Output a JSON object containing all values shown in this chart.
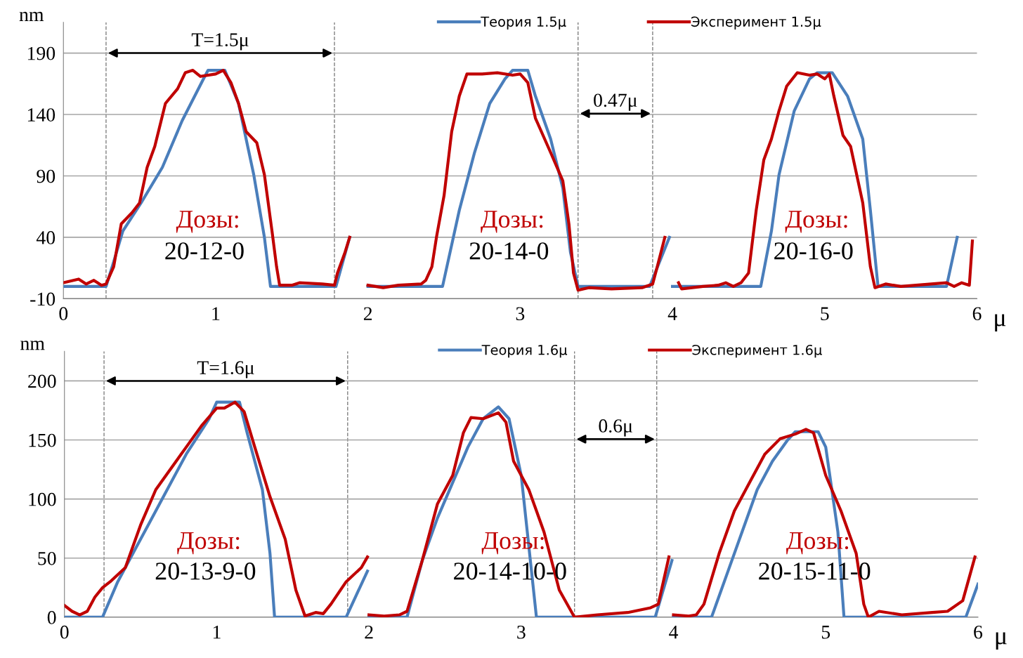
{
  "chart_data": [
    {
      "type": "line",
      "xlabel": "μ",
      "ylabel": "nm",
      "xlim": [
        0,
        6
      ],
      "ylim": [
        -10,
        215
      ],
      "xticks": [
        0,
        1,
        2,
        3,
        4,
        5,
        6
      ],
      "yticks": [
        -10,
        40,
        90,
        140,
        190
      ],
      "grid": "y",
      "legend": "top",
      "marker": "none",
      "line_style": "solid",
      "series": [
        {
          "name": "Теория 1.5μ",
          "color": "#4a7ebb",
          "x": [
            0,
            0.28,
            0.33,
            0.39,
            0.51,
            0.65,
            0.78,
            0.92,
            0.95,
            1.06,
            1.15,
            1.25,
            1.32,
            1.36,
            1.79,
            1.88,
            null,
            2.0,
            2.49,
            2.6,
            2.7,
            2.8,
            2.9,
            2.95,
            3.05,
            3.1,
            3.2,
            3.28,
            3.33,
            3.38,
            3.85,
            3.98,
            null,
            4.0,
            4.58,
            4.65,
            4.7,
            4.8,
            4.9,
            4.95,
            5.05,
            5.15,
            5.25,
            5.3,
            5.35,
            5.8,
            5.87
          ],
          "values": [
            0,
            0,
            20,
            45,
            68,
            97,
            135,
            169,
            176,
            176,
            149,
            91,
            40,
            0,
            0,
            40,
            null,
            0,
            0,
            62,
            109,
            149,
            169,
            176,
            176,
            155,
            120,
            80,
            28,
            0,
            0,
            40,
            null,
            0,
            0,
            45,
            91,
            143,
            169,
            174,
            174,
            155,
            120,
            62,
            0,
            0,
            40
          ]
        },
        {
          "name": "Эксперимент 1.5μ",
          "color": "#c00000",
          "x": [
            0,
            0.1,
            0.15,
            0.2,
            0.25,
            0.28,
            0.33,
            0.38,
            0.45,
            0.5,
            0.55,
            0.6,
            0.67,
            0.75,
            0.8,
            0.85,
            0.9,
            1.0,
            1.05,
            1.1,
            1.15,
            1.2,
            1.27,
            1.32,
            1.37,
            1.4,
            1.42,
            1.5,
            1.55,
            1.7,
            1.78,
            1.8,
            1.85,
            1.88,
            null,
            2.0,
            2.1,
            2.2,
            2.35,
            2.38,
            2.42,
            2.45,
            2.5,
            2.55,
            2.6,
            2.65,
            2.75,
            2.85,
            2.95,
            3.0,
            3.05,
            3.1,
            3.2,
            3.28,
            3.32,
            3.35,
            3.38,
            3.45,
            3.6,
            3.8,
            3.87,
            3.9,
            3.95,
            null,
            4.04,
            4.06,
            4.2,
            4.3,
            4.35,
            4.4,
            4.45,
            4.5,
            4.55,
            4.6,
            4.65,
            4.7,
            4.75,
            4.82,
            4.9,
            4.95,
            5.0,
            5.03,
            5.06,
            5.12,
            5.17,
            5.25,
            5.3,
            5.33,
            5.4,
            5.5,
            5.7,
            5.8,
            5.85,
            5.9,
            5.95,
            5.97
          ],
          "values": [
            3,
            6,
            2,
            5,
            1,
            2,
            16,
            51,
            60,
            68,
            97,
            114,
            149,
            161,
            174,
            176,
            171,
            173,
            176,
            166,
            149,
            126,
            117,
            91,
            45,
            16,
            1,
            1,
            3,
            2,
            1,
            11,
            28,
            40,
            null,
            1,
            -1,
            1,
            2,
            5,
            16,
            40,
            74,
            126,
            155,
            173,
            173,
            174,
            172,
            173,
            166,
            137,
            109,
            86,
            51,
            11,
            -3,
            -1,
            -2,
            -1,
            2,
            16,
            40,
            null,
            3,
            -2,
            0,
            1,
            3,
            0,
            3,
            11,
            62,
            103,
            120,
            143,
            163,
            174,
            172,
            173,
            169,
            173,
            155,
            123,
            114,
            68,
            16,
            -1,
            2,
            0,
            2,
            3,
            0,
            3,
            1,
            37
          ]
        }
      ],
      "ref_lines": [
        {
          "axis": "x",
          "value": 0.28,
          "color": "#808080",
          "line_style": "dashed"
        },
        {
          "axis": "x",
          "value": 1.78,
          "color": "#808080",
          "line_style": "dashed"
        },
        {
          "axis": "x",
          "value": 3.38,
          "color": "#808080",
          "line_style": "dashed"
        },
        {
          "axis": "x",
          "value": 3.87,
          "color": "#808080",
          "line_style": "dashed"
        }
      ],
      "annotations": [
        "T=1.5μ",
        "0.47μ",
        "Дозы:",
        "20-12-0",
        "Дозы:",
        "20-14-0",
        "Дозы:",
        "20-16-0"
      ]
    },
    {
      "type": "line",
      "xlabel": "μ",
      "ylabel": "nm",
      "xlim": [
        0,
        6
      ],
      "ylim": [
        0,
        225
      ],
      "xticks": [
        0,
        1,
        2,
        3,
        4,
        5,
        6
      ],
      "yticks": [
        0,
        50,
        100,
        150,
        200
      ],
      "grid": "y",
      "legend": "top",
      "marker": "none",
      "line_style": "solid",
      "series": [
        {
          "name": "Теория 1.6μ",
          "color": "#4a7ebb",
          "x": [
            0,
            0.25,
            0.35,
            0.45,
            0.55,
            0.65,
            0.8,
            0.95,
            1.0,
            1.15,
            1.2,
            1.3,
            1.35,
            1.38,
            1.85,
            1.99,
            null,
            2.0,
            2.25,
            2.35,
            2.45,
            2.55,
            2.65,
            2.75,
            2.85,
            2.92,
            3.0,
            3.05,
            3.1,
            3.88,
            3.99,
            null,
            4.0,
            4.25,
            4.35,
            4.45,
            4.55,
            4.65,
            4.75,
            4.8,
            4.95,
            5.0,
            5.08,
            5.12,
            5.92,
            6.0
          ],
          "values": [
            0,
            0,
            30,
            54,
            78,
            102,
            138,
            168,
            182,
            182,
            156,
            108,
            54,
            0,
            0,
            39,
            null,
            0,
            0,
            48,
            84,
            114,
            144,
            168,
            178,
            168,
            120,
            60,
            0,
            0,
            48,
            null,
            0,
            0,
            36,
            72,
            108,
            132,
            150,
            157,
            157,
            144,
            72,
            0,
            0,
            28
          ]
        },
        {
          "name": "Эксперимент 1.6μ",
          "color": "#c00000",
          "x": [
            0,
            0.05,
            0.1,
            0.15,
            0.2,
            0.25,
            0.3,
            0.4,
            0.5,
            0.6,
            0.7,
            0.8,
            0.9,
            1.0,
            1.05,
            1.12,
            1.18,
            1.25,
            1.35,
            1.45,
            1.52,
            1.58,
            1.65,
            1.7,
            1.75,
            1.85,
            1.95,
            1.99,
            null,
            2.0,
            2.1,
            2.2,
            2.25,
            2.35,
            2.45,
            2.55,
            2.62,
            2.67,
            2.75,
            2.85,
            2.9,
            2.95,
            3.05,
            3.15,
            3.25,
            3.35,
            3.5,
            3.7,
            3.85,
            3.9,
            3.97,
            null,
            4.0,
            4.1,
            4.15,
            4.2,
            4.3,
            4.4,
            4.5,
            4.6,
            4.7,
            4.8,
            4.87,
            4.92,
            5.0,
            5.1,
            5.2,
            5.25,
            5.28,
            5.35,
            5.5,
            5.7,
            5.8,
            5.9,
            5.98
          ],
          "values": [
            10,
            5,
            2,
            5,
            17,
            25,
            30,
            42,
            78,
            108,
            126,
            144,
            162,
            177,
            177,
            182,
            174,
            144,
            102,
            66,
            23,
            1,
            4,
            3,
            11,
            30,
            42,
            51,
            null,
            2,
            1,
            2,
            5,
            48,
            96,
            120,
            156,
            169,
            168,
            173,
            165,
            132,
            108,
            72,
            23,
            0,
            2,
            4,
            8,
            11,
            51,
            null,
            2,
            1,
            2,
            11,
            54,
            90,
            114,
            138,
            151,
            155,
            159,
            156,
            120,
            90,
            54,
            11,
            0,
            5,
            2,
            4,
            5,
            14,
            51
          ]
        }
      ],
      "ref_lines": [
        {
          "axis": "x",
          "value": 0.26,
          "color": "#808080",
          "line_style": "dashed"
        },
        {
          "axis": "x",
          "value": 1.86,
          "color": "#808080",
          "line_style": "dashed"
        },
        {
          "axis": "x",
          "value": 3.35,
          "color": "#808080",
          "line_style": "dashed"
        },
        {
          "axis": "x",
          "value": 3.89,
          "color": "#808080",
          "line_style": "dashed"
        }
      ],
      "annotations": [
        "T=1.6μ",
        "0.6μ",
        "Дозы:",
        "20-13-9-0",
        "Дозы:",
        "20-14-10-0",
        "Дозы:",
        "20-15-11-0"
      ]
    }
  ]
}
